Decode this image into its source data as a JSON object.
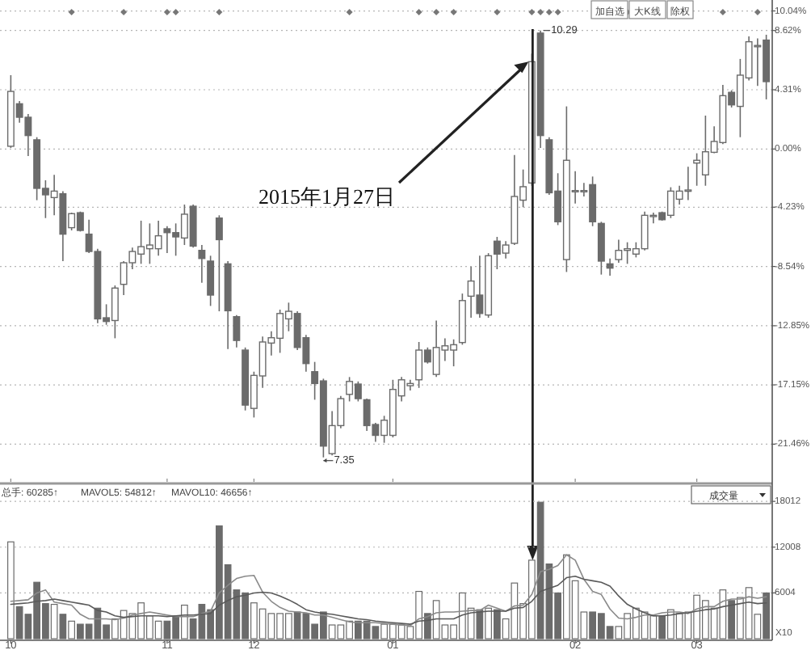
{
  "chart_data": [
    {
      "type": "candlestick",
      "categories": [
        "10",
        null,
        null,
        null,
        null,
        null,
        null,
        null,
        null,
        null,
        null,
        null,
        null,
        null,
        null,
        null,
        null,
        null,
        "11",
        null,
        null,
        null,
        null,
        null,
        null,
        null,
        null,
        null,
        "12",
        null,
        null,
        null,
        null,
        null,
        null,
        null,
        null,
        null,
        null,
        null,
        null,
        null,
        null,
        null,
        "01",
        null,
        null,
        null,
        null,
        null,
        null,
        null,
        null,
        null,
        null,
        null,
        null,
        null,
        null,
        null,
        null,
        null,
        null,
        null,
        null,
        "02",
        null,
        null,
        null,
        null,
        null,
        null,
        null,
        null,
        null,
        null,
        null,
        null,
        null,
        "03",
        null,
        null,
        null,
        null,
        null,
        null,
        null,
        null
      ],
      "ohlc": [
        [
          0.2,
          5.37,
          0.08,
          4.19
        ],
        [
          3.29,
          3.49,
          1.92,
          2.31
        ],
        [
          2.31,
          2.55,
          -0.51,
          0.98
        ],
        [
          0.67,
          0.86,
          -3.72,
          -2.86
        ],
        [
          -2.86,
          -2.27,
          -5.02,
          -3.33
        ],
        [
          -3.53,
          -1.88,
          -4.82,
          -3.06
        ],
        [
          -3.25,
          -3.06,
          -8.15,
          -6.19
        ],
        [
          -5.72,
          -4.63,
          -5.92,
          -4.7
        ],
        [
          -4.63,
          -4.55,
          -6.0,
          -5.92
        ],
        [
          -6.19,
          -5.14,
          -7.57,
          -7.45
        ],
        [
          -7.45,
          -7.25,
          -12.66,
          -12.35
        ],
        [
          -12.27,
          -11.29,
          -12.78,
          -12.54
        ],
        [
          -12.47,
          -9.92,
          -13.76,
          -10.11
        ],
        [
          -9.84,
          -8.15,
          -10.62,
          -8.27
        ],
        [
          -8.27,
          -7.17,
          -8.74,
          -7.45
        ],
        [
          -7.64,
          -5.21,
          -8.35,
          -7.1
        ],
        [
          -7.25,
          -5.41,
          -8.35,
          -6.98
        ],
        [
          -7.25,
          -5.21,
          -7.76,
          -6.31
        ],
        [
          -5.8,
          -5.61,
          -7.57,
          -6.08
        ],
        [
          -6.08,
          -5.41,
          -7.76,
          -6.39
        ],
        [
          -6.47,
          -4.04,
          -6.98,
          -4.74
        ],
        [
          -4.16,
          -4.04,
          -7.17,
          -7.06
        ],
        [
          -7.37,
          -6.98,
          -9.72,
          -7.96
        ],
        [
          -8.15,
          -7.76,
          -11.41,
          -10.62
        ],
        [
          -5.02,
          -4.82,
          -11.8,
          -6.59
        ],
        [
          -8.35,
          -8.15,
          -14.54,
          -11.76
        ],
        [
          -12.19,
          -12.07,
          -14.43,
          -13.92
        ],
        [
          -14.62,
          -14.43,
          -19.01,
          -18.62
        ],
        [
          -18.86,
          -16.19,
          -19.52,
          -16.46
        ],
        [
          -16.5,
          -13.64,
          -17.37,
          -14.03
        ],
        [
          -14.11,
          -13.25,
          -15.01,
          -13.72
        ],
        [
          -13.76,
          -11.68,
          -14.82,
          -11.96
        ],
        [
          -12.35,
          -11.17,
          -13.25,
          -11.8
        ],
        [
          -11.96,
          -11.8,
          -14.62,
          -14.43
        ],
        [
          -13.72,
          -13.52,
          -16.19,
          -15.6
        ],
        [
          -16.19,
          -15.48,
          -18.23,
          -17.05
        ],
        [
          -16.86,
          -16.7,
          -22.42,
          -21.6
        ],
        [
          -22.15,
          -19.05,
          -22.27,
          -20.11
        ],
        [
          -20.11,
          -17.95,
          -20.31,
          -18.15
        ],
        [
          -17.84,
          -16.58,
          -18.35,
          -16.9
        ],
        [
          -17.09,
          -16.9,
          -18.35,
          -18.15
        ],
        [
          -18.23,
          -18.15,
          -20.5,
          -20.11
        ],
        [
          -20.03,
          -19.91,
          -21.29,
          -20.82
        ],
        [
          -20.82,
          -19.4,
          -21.36,
          -19.72
        ],
        [
          -20.82,
          -16.78,
          -20.97,
          -17.48
        ],
        [
          -17.95,
          -16.58,
          -18.35,
          -16.78
        ],
        [
          -17.21,
          -16.78,
          -17.56,
          -17.05
        ],
        [
          -16.78,
          -14.03,
          -17.37,
          -14.62
        ],
        [
          -14.62,
          -14.43,
          -15.6,
          -15.48
        ],
        [
          -16.39,
          -12.47,
          -16.58,
          -14.43
        ],
        [
          -14.62,
          -13.76,
          -15.41,
          -14.31
        ],
        [
          -14.62,
          -13.84,
          -15.8,
          -14.23
        ],
        [
          -14.07,
          -10.51,
          -14.23,
          -11.02
        ],
        [
          -10.7,
          -8.55,
          -12.27,
          -9.6
        ],
        [
          -10.62,
          -7.76,
          -12.27,
          -11.96
        ],
        [
          -12.07,
          -7.57,
          -12.27,
          -7.76
        ],
        [
          -6.7,
          -6.39,
          -8.74,
          -7.64
        ],
        [
          -7.57,
          -6.7,
          -7.96,
          -6.98
        ],
        [
          -6.86,
          -0.43,
          -6.98,
          -3.45
        ],
        [
          -3.72,
          -1.49,
          -4.23,
          -2.74
        ],
        [
          -2.47,
          6.94,
          -2.67,
          6.35
        ],
        [
          8.43,
          8.62,
          0.08,
          0.98
        ],
        [
          0.67,
          0.86,
          -3.33,
          -3.18
        ],
        [
          -3.06,
          -1.76,
          -5.53,
          -5.29
        ],
        [
          -8.04,
          3.1,
          -8.94,
          -0.82
        ],
        [
          -3.1,
          -1.61,
          -3.96,
          -3.02
        ],
        [
          -3.1,
          -2.47,
          -3.45,
          -3.02
        ],
        [
          -2.59,
          -2.0,
          -5.61,
          -5.29
        ],
        [
          -5.41,
          -5.29,
          -9.13,
          -8.15
        ],
        [
          -8.35,
          -7.96,
          -9.21,
          -8.66
        ],
        [
          -8.04,
          -6.59,
          -8.27,
          -7.37
        ],
        [
          -7.37,
          -6.78,
          -8.35,
          -7.25
        ],
        [
          -7.64,
          -6.78,
          -7.88,
          -7.25
        ],
        [
          -7.25,
          -4.55,
          -7.37,
          -4.82
        ],
        [
          -4.9,
          -4.63,
          -5.41,
          -4.82
        ],
        [
          -4.63,
          -4.55,
          -5.21,
          -5.14
        ],
        [
          -4.82,
          -2.78,
          -5.02,
          -3.06
        ],
        [
          -3.65,
          -2.67,
          -4.04,
          -3.06
        ],
        [
          -3.06,
          -1.29,
          -3.72,
          -2.98
        ],
        [
          -1.02,
          -0.31,
          -2.67,
          -0.82
        ],
        [
          -1.88,
          2.43,
          -2.67,
          -0.2
        ],
        [
          -0.24,
          1.65,
          -0.31,
          0.55
        ],
        [
          0.47,
          4.66,
          0.35,
          3.88
        ],
        [
          4.12,
          4.27,
          3.02,
          3.21
        ],
        [
          3.1,
          6.55,
          0.86,
          5.37
        ],
        [
          5.17,
          8.19,
          4.98,
          7.8
        ],
        [
          7.45,
          8.04,
          4.59,
          7.53
        ],
        [
          7.92,
          8.31,
          3.61,
          4.9
        ]
      ],
      "ylim": [
        -24.2,
        10.6
      ],
      "yticks": [
        {
          "value": 10.04,
          "label": "10.04%"
        },
        {
          "value": 8.62,
          "label": "8.62%"
        },
        {
          "value": 4.31,
          "label": "4.31%"
        },
        {
          "value": 0,
          "label": "0.00%"
        },
        {
          "value": -4.23,
          "label": "-4.23%"
        },
        {
          "value": -8.54,
          "label": "-8.54%"
        },
        {
          "value": -12.85,
          "label": "-12.85%"
        },
        {
          "value": -17.15,
          "label": "-17.15%"
        },
        {
          "value": -21.46,
          "label": "-21.46%"
        }
      ],
      "grid": "y",
      "tick_labels": "y",
      "annotations": [
        "加自选",
        "大K线",
        "除权",
        "2015年1月27日",
        "10.29",
        "7.35"
      ]
    },
    {
      "type": "bar",
      "categories": [
        "10",
        null,
        null,
        null,
        null,
        null,
        null,
        null,
        null,
        null,
        null,
        null,
        null,
        null,
        null,
        null,
        null,
        null,
        "11",
        null,
        null,
        null,
        null,
        null,
        null,
        null,
        null,
        null,
        "12",
        null,
        null,
        null,
        null,
        null,
        null,
        null,
        null,
        null,
        null,
        null,
        null,
        null,
        null,
        null,
        "01",
        null,
        null,
        null,
        null,
        null,
        null,
        null,
        null,
        null,
        null,
        null,
        null,
        null,
        null,
        null,
        null,
        null,
        null,
        null,
        null,
        "02",
        null,
        null,
        null,
        null,
        null,
        null,
        null,
        null,
        null,
        null,
        null,
        null,
        null,
        "03",
        null,
        null,
        null,
        null,
        null,
        null,
        null,
        null
      ],
      "series": [
        {
          "values": [
            12700,
            4200,
            3200,
            7400,
            4600,
            4500,
            3200,
            2300,
            1900,
            1900,
            4000,
            1800,
            2600,
            3700,
            3300,
            4700,
            3000,
            2300,
            2300,
            3000,
            4400,
            2600,
            4500,
            3800,
            14800,
            9700,
            6400,
            6000,
            4700,
            3900,
            3300,
            3300,
            3300,
            3500,
            3300,
            1900,
            3500,
            1800,
            1800,
            2300,
            2300,
            2300,
            1600,
            1900,
            1900,
            1800,
            1600,
            6200,
            3300,
            5000,
            1800,
            1800,
            6000,
            4000,
            3800,
            4000,
            3800,
            2600,
            7300,
            4600,
            10300,
            17900,
            9800,
            6000,
            11000,
            7600,
            3500,
            3500,
            3300,
            1600,
            1600,
            3300,
            4000,
            3500,
            3000,
            3000,
            3800,
            3300,
            3500,
            5700,
            5000,
            4000,
            6400,
            5000,
            5400,
            6700,
            3200,
            6000
          ],
          "colors": [
            "#ffffff",
            "#6b6b6b",
            "#6b6b6b",
            "#6b6b6b",
            "#6b6b6b",
            "#ffffff",
            "#6b6b6b",
            "#ffffff",
            "#6b6b6b",
            "#6b6b6b",
            "#6b6b6b",
            "#6b6b6b",
            "#ffffff",
            "#ffffff",
            "#ffffff",
            "#ffffff",
            "#ffffff",
            "#ffffff",
            "#6b6b6b",
            "#6b6b6b",
            "#ffffff",
            "#6b6b6b",
            "#6b6b6b",
            "#6b6b6b",
            "#6b6b6b",
            "#6b6b6b",
            "#6b6b6b",
            "#6b6b6b",
            "#ffffff",
            "#ffffff",
            "#ffffff",
            "#ffffff",
            "#ffffff",
            "#6b6b6b",
            "#6b6b6b",
            "#6b6b6b",
            "#6b6b6b",
            "#ffffff",
            "#ffffff",
            "#ffffff",
            "#6b6b6b",
            "#6b6b6b",
            "#6b6b6b",
            "#ffffff",
            "#ffffff",
            "#ffffff",
            "#ffffff",
            "#ffffff",
            "#6b6b6b",
            "#ffffff",
            "#ffffff",
            "#ffffff",
            "#ffffff",
            "#ffffff",
            "#6b6b6b",
            "#ffffff",
            "#6b6b6b",
            "#ffffff",
            "#ffffff",
            "#ffffff",
            "#ffffff",
            "#6b6b6b",
            "#6b6b6b",
            "#6b6b6b",
            "#ffffff",
            "#ffffff",
            "#ffffff",
            "#6b6b6b",
            "#6b6b6b",
            "#6b6b6b",
            "#ffffff",
            "#ffffff",
            "#ffffff",
            "#ffffff",
            "#ffffff",
            "#6b6b6b",
            "#ffffff",
            "#ffffff",
            "#ffffff",
            "#ffffff",
            "#ffffff",
            "#ffffff",
            "#ffffff",
            "#6b6b6b",
            "#ffffff",
            "#ffffff",
            "#ffffff",
            "#6b6b6b"
          ]
        },
        {
          "type": "line",
          "color": "#8a8a8a",
          "values": [
            4900,
            5000,
            5100,
            6000,
            6400,
            4800,
            4600,
            4400,
            3200,
            2600,
            2600,
            2600,
            2500,
            2700,
            3100,
            3300,
            3500,
            3300,
            3100,
            2900,
            2900,
            2900,
            3300,
            3600,
            6000,
            7000,
            7900,
            8200,
            8300,
            6100,
            4900,
            4100,
            3600,
            3500,
            3400,
            3100,
            3100,
            2800,
            2500,
            2200,
            2100,
            2100,
            2100,
            2000,
            1900,
            1800,
            1700,
            2600,
            2900,
            3400,
            3500,
            3500,
            3600,
            3700,
            3700,
            4400,
            4000,
            3600,
            4300,
            4400,
            5800,
            8800,
            9100,
            9600,
            11000,
            10300,
            7800,
            6200,
            5800,
            3900,
            2700,
            2600,
            2800,
            3100,
            3100,
            3400,
            3500,
            3500,
            3300,
            3900,
            4200,
            4200,
            4900,
            5200,
            5200,
            5500,
            5300,
            5500
          ]
        },
        {
          "type": "line",
          "color": "#5a5a5a",
          "values": [
            4500,
            4600,
            4700,
            4900,
            5000,
            5200,
            5000,
            4800,
            4600,
            4400,
            3700,
            3500,
            3000,
            2800,
            2900,
            3000,
            3000,
            3000,
            2900,
            3000,
            3100,
            3100,
            3200,
            3300,
            4400,
            5000,
            5500,
            5700,
            6000,
            6100,
            6000,
            5600,
            5100,
            4500,
            3800,
            3500,
            3300,
            3200,
            3000,
            2800,
            2600,
            2500,
            2300,
            2200,
            2100,
            2000,
            1900,
            2300,
            2400,
            2600,
            2600,
            2600,
            3100,
            3400,
            3500,
            3600,
            3600,
            3600,
            4000,
            4100,
            4900,
            6200,
            6600,
            7000,
            8000,
            8200,
            7800,
            7600,
            7400,
            6900,
            5600,
            4500,
            3900,
            3400,
            3000,
            3000,
            3100,
            3300,
            3400,
            3600,
            3800,
            3900,
            4200,
            4400,
            4600,
            4800,
            4600,
            4700
          ]
        }
      ],
      "ylim": [
        0,
        20150
      ],
      "yticks": [
        6004,
        12008,
        18012
      ],
      "grid": "y",
      "annotations": [
        "总手: 60285↑",
        "MAVOL5: 54812↑",
        "MAVOL10: 46656↑",
        "成交量",
        "X10"
      ]
    }
  ]
}
